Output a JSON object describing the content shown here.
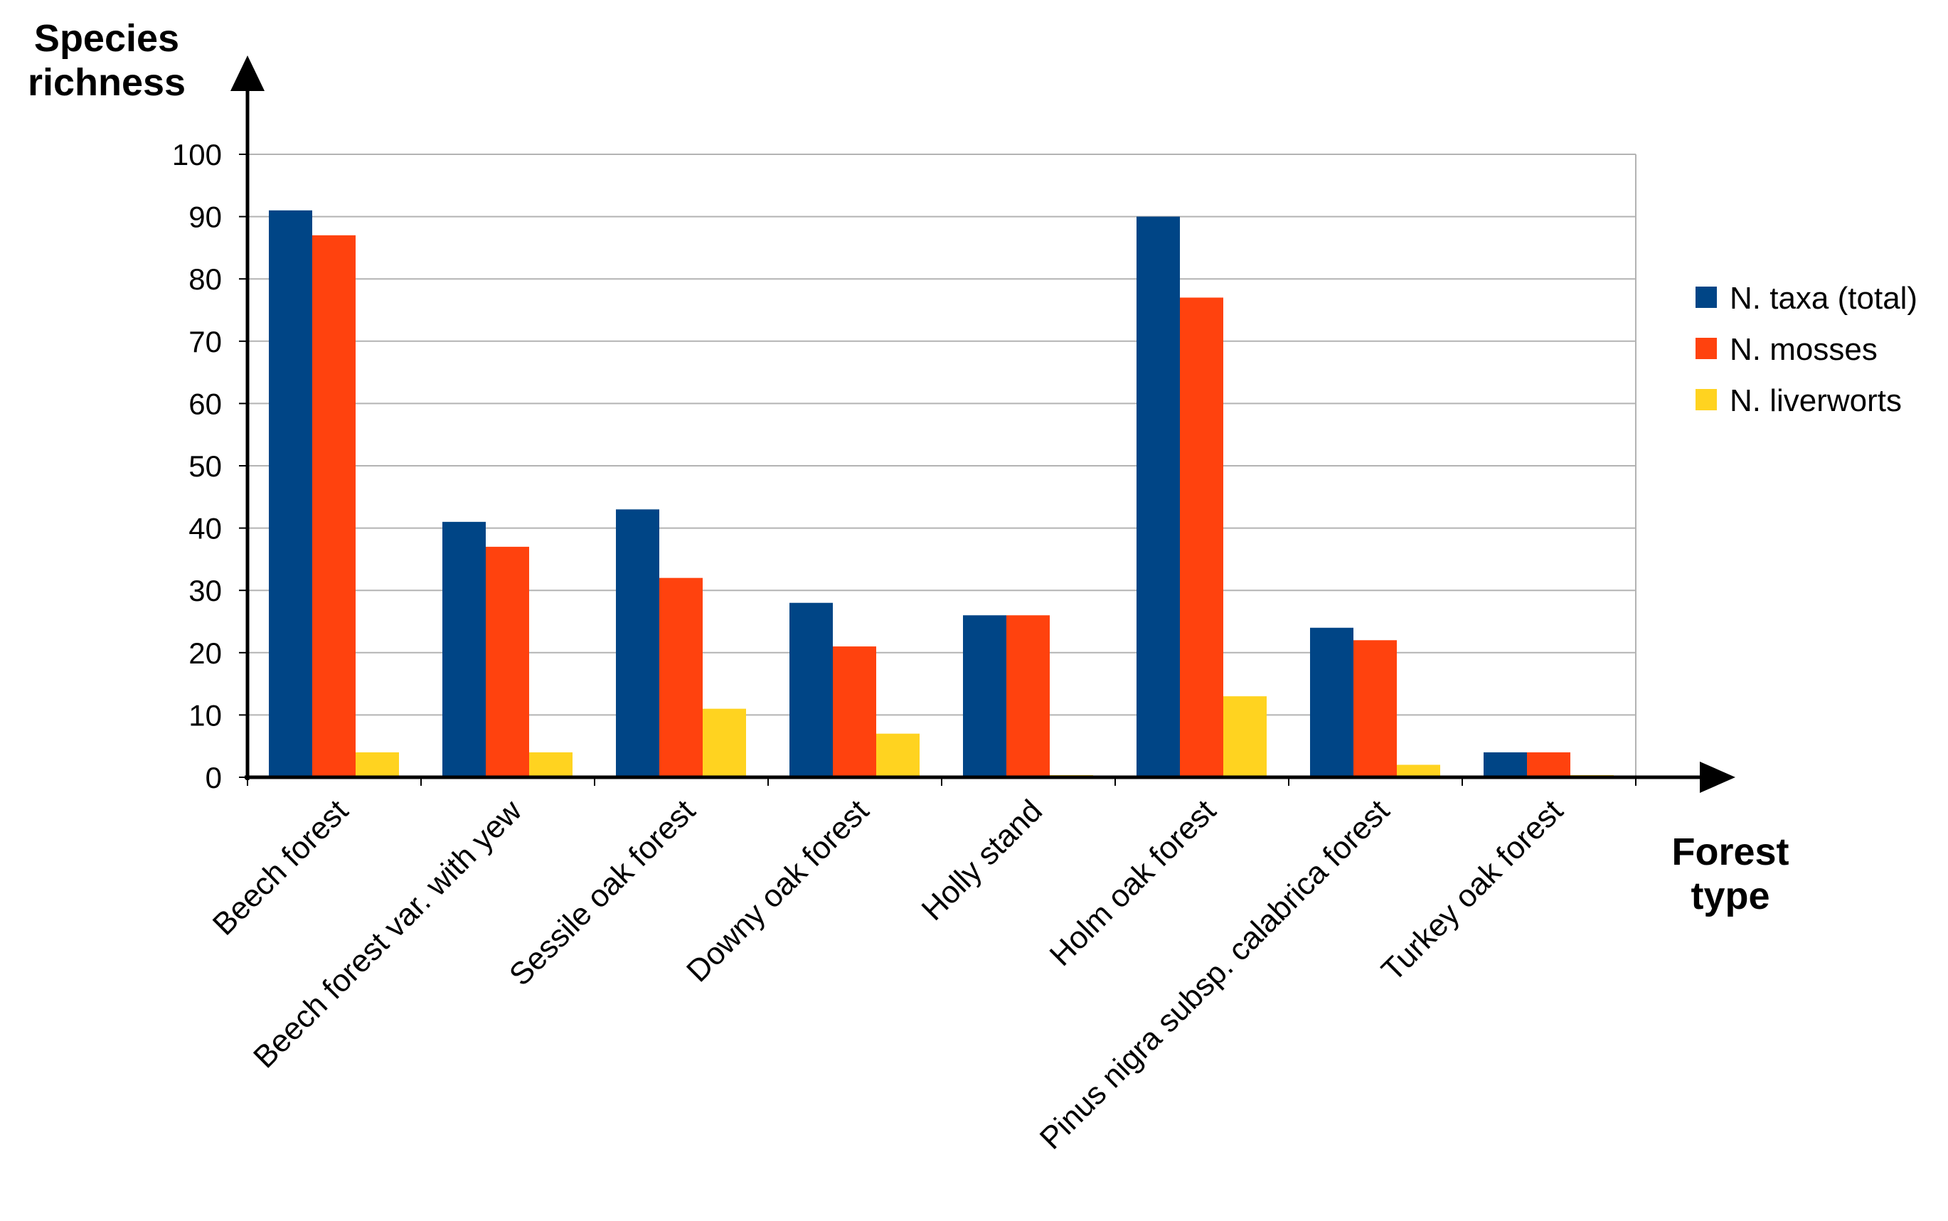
{
  "chart_data": {
    "type": "bar",
    "title": "",
    "ylabel": [
      "Species",
      "richness"
    ],
    "xlabel": [
      "Forest",
      "type"
    ],
    "ylim": [
      0,
      100
    ],
    "yticks": [
      0,
      10,
      20,
      30,
      40,
      50,
      60,
      70,
      80,
      90,
      100
    ],
    "grid": true,
    "legend_position": "right",
    "categories": [
      "Beech forest",
      "Beech forest var. with yew",
      "Sessile oak forest",
      "Downy oak forest",
      "Holly stand",
      "Holm oak forest",
      "Pinus nigra subsp. calabrica forest",
      "Turkey oak forest"
    ],
    "series": [
      {
        "name": "N. taxa (total)",
        "color": "#004586",
        "values": [
          91,
          41,
          43,
          28,
          26,
          90,
          24,
          4
        ]
      },
      {
        "name": "N. mosses",
        "color": "#ff420e",
        "values": [
          87,
          37,
          32,
          21,
          26,
          77,
          22,
          4
        ]
      },
      {
        "name": "N. liverworts",
        "color": "#ffd320",
        "values": [
          4,
          4,
          11,
          7,
          0,
          13,
          2,
          0
        ]
      }
    ]
  }
}
